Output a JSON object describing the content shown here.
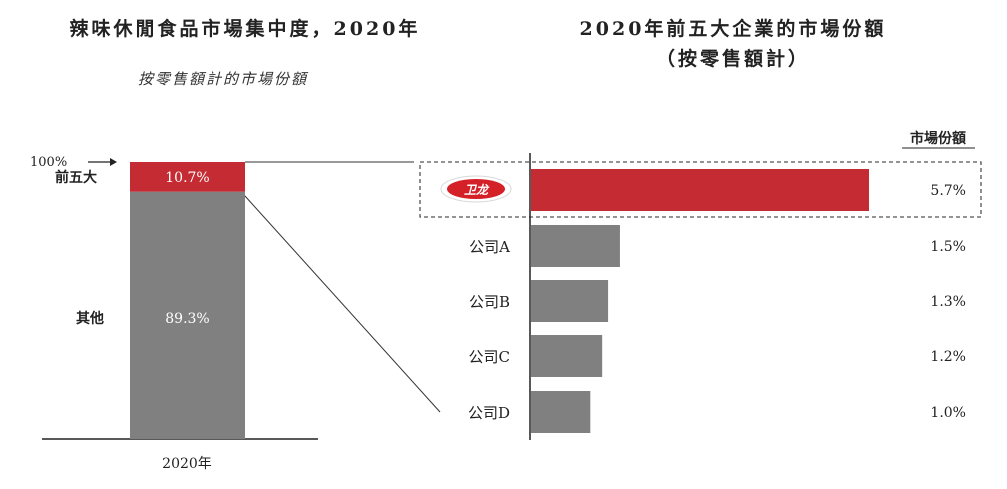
{
  "left": {
    "title": "辣味休閒食品市場集中度，2020年",
    "subtitle": "按零售額計的市場份額"
  },
  "right": {
    "title_line1": "2020年前五大企業的市場份額",
    "title_line2": "（按零售額計）",
    "column_header": "市場份額",
    "logo_text": "卫龙"
  },
  "chart_data": [
    {
      "type": "bar",
      "stacked": true,
      "title": "辣味休閒食品市場集中度，2020年",
      "subtitle": "按零售額計的市場份額",
      "categories": [
        "2020年"
      ],
      "top_label": "100%",
      "ylim": [
        0,
        100
      ],
      "series": [
        {
          "name": "其他",
          "label": "89.3%",
          "values": [
            89.3
          ],
          "color": "#808080"
        },
        {
          "name": "前五大",
          "label": "10.7%",
          "values": [
            10.7
          ],
          "color": "#c52b33"
        }
      ]
    },
    {
      "type": "bar",
      "orientation": "horizontal",
      "title": "2020年前五大企業的市場份額（按零售額計）",
      "value_header": "市場份額",
      "categories": [
        "卫龙",
        "公司A",
        "公司B",
        "公司C",
        "公司D"
      ],
      "values": [
        5.7,
        1.5,
        1.3,
        1.2,
        1.0
      ],
      "value_labels": [
        "5.7%",
        "1.5%",
        "1.3%",
        "1.2%",
        "1.0%"
      ],
      "colors": [
        "#c52b33",
        "#808080",
        "#808080",
        "#808080",
        "#808080"
      ],
      "highlight_category": "卫龙"
    }
  ]
}
